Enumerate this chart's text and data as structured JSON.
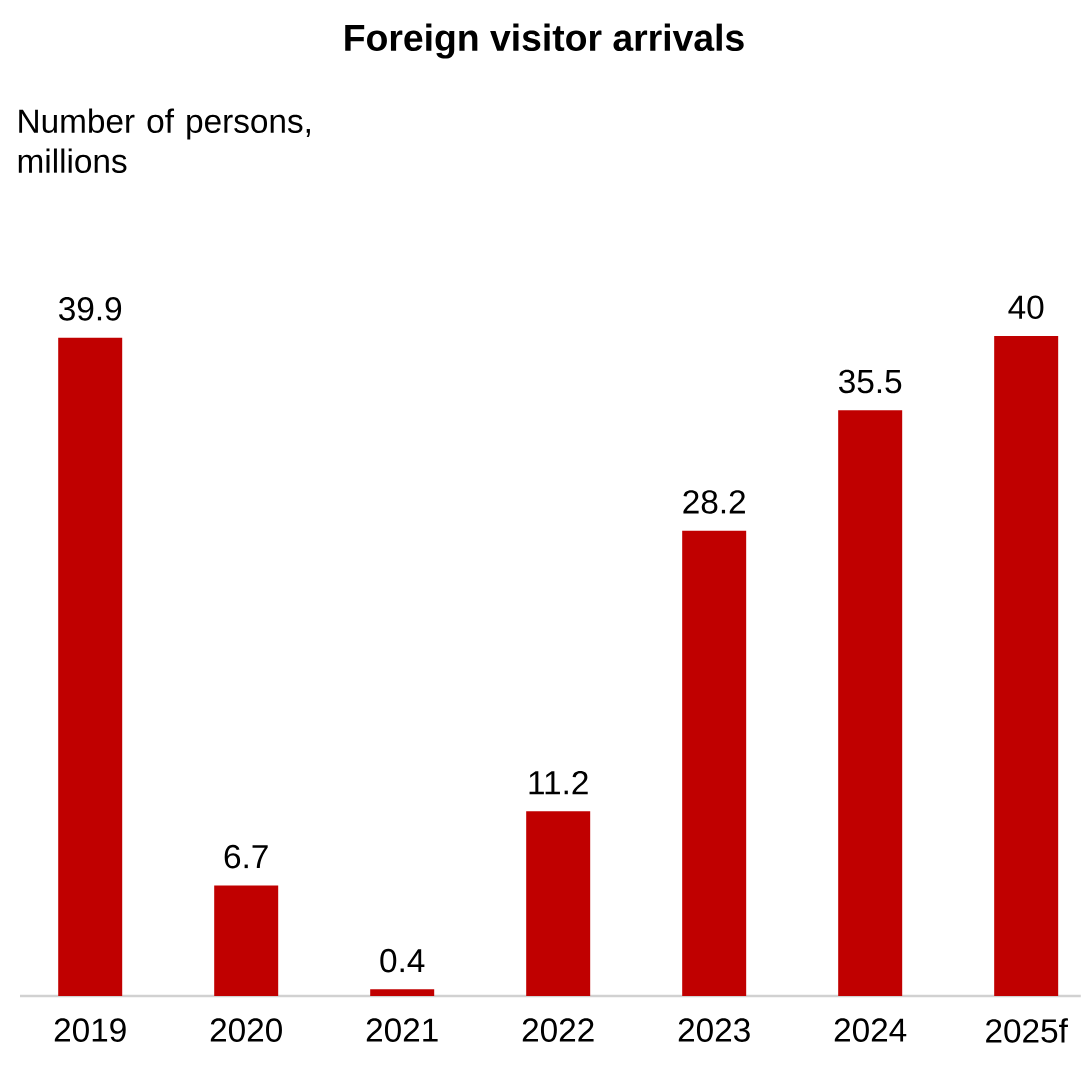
{
  "chart_data": {
    "type": "bar",
    "title": "Foreign visitor arrivals",
    "ylabel": "Number of persons, millions",
    "categories": [
      "2019",
      "2020",
      "2021",
      "2022",
      "2023",
      "2024",
      "2025f"
    ],
    "values": [
      39.9,
      6.7,
      0.4,
      11.2,
      28.2,
      35.5,
      40
    ],
    "color": "#c00000",
    "ylim": [
      0,
      40
    ],
    "data_labels": true,
    "tick_labels": "x"
  }
}
